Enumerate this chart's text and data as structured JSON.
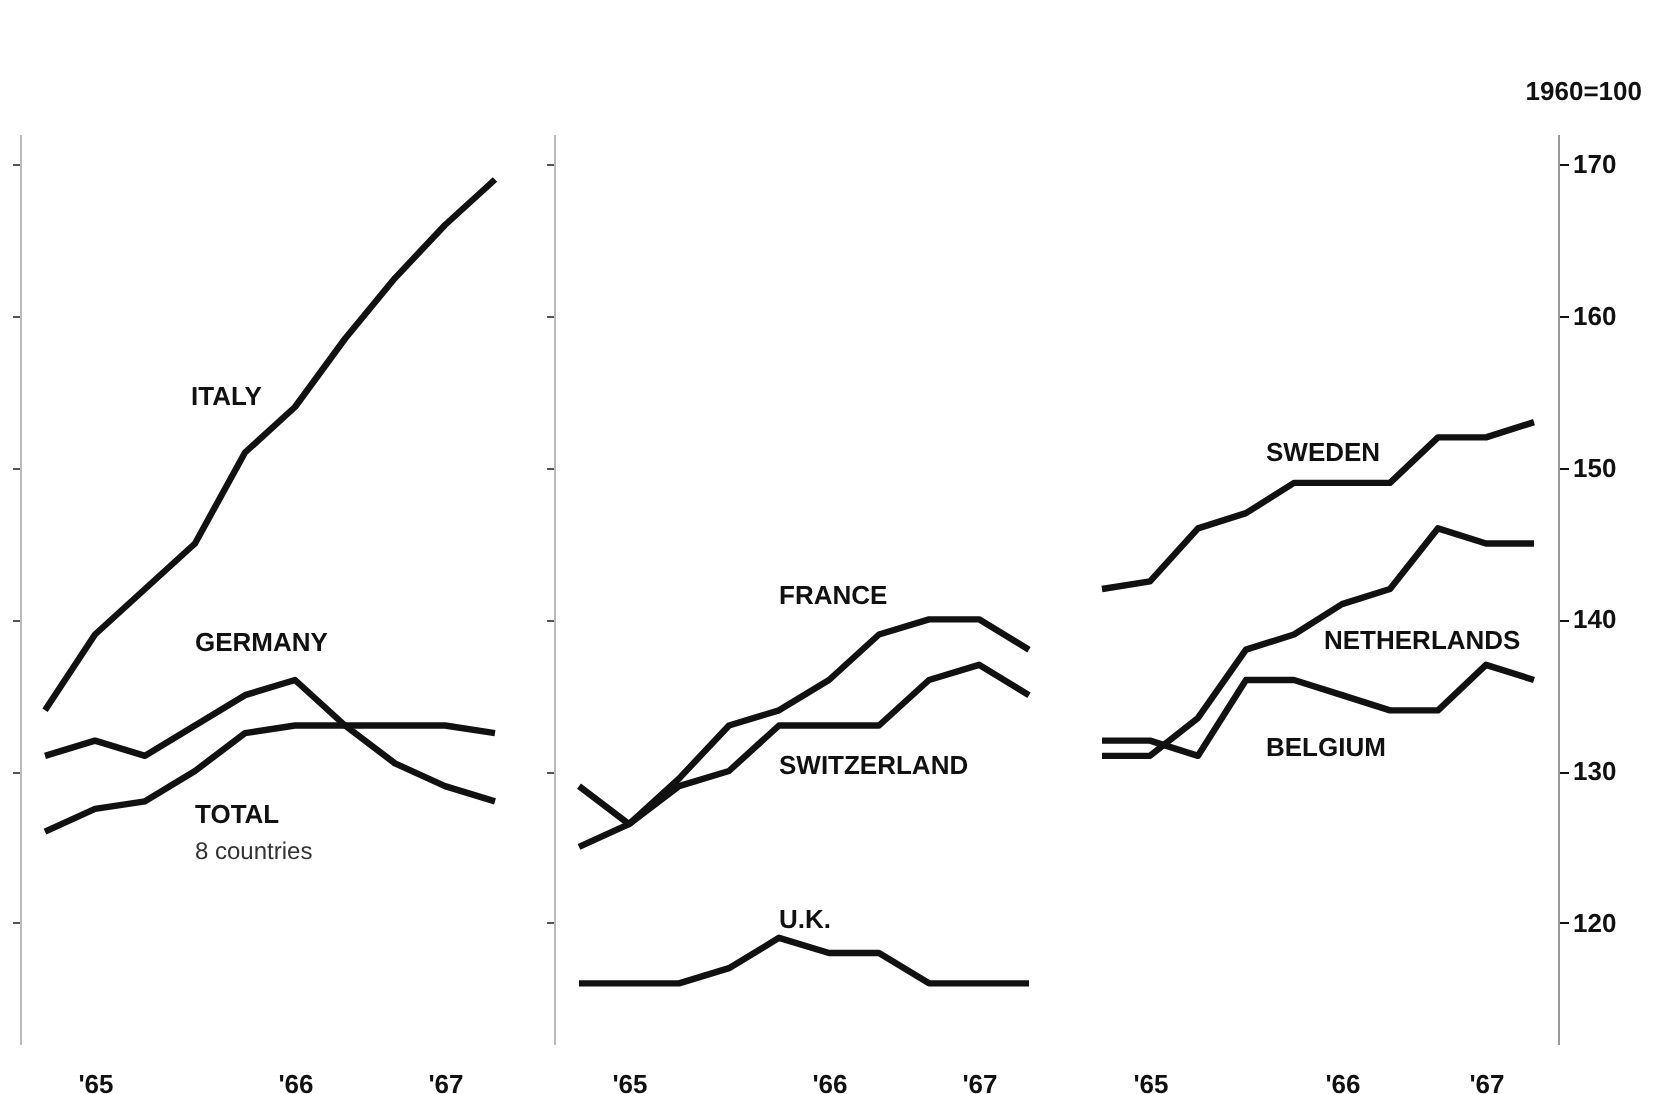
{
  "chart_data": [
    {
      "type": "line",
      "categories": [
        null,
        "'65",
        null,
        null,
        null,
        "'66",
        null,
        null,
        "'67",
        null
      ],
      "ylim": [
        112,
        172
      ],
      "yticks": [
        120,
        130,
        140,
        150,
        160,
        170
      ],
      "tick_labels": "x",
      "grid": false,
      "series": [
        {
          "name": "ITALY",
          "color": "#111111",
          "values": [
            134,
            139,
            142,
            145,
            151,
            154,
            158.5,
            162.5,
            166,
            169
          ]
        },
        {
          "name": "GERMANY",
          "color": "#111111",
          "values": [
            131,
            132,
            131,
            133,
            135,
            136,
            133,
            130.5,
            129,
            128
          ]
        },
        {
          "name": "TOTAL",
          "color": "#111111",
          "values": [
            126,
            127.5,
            128,
            130,
            132.5,
            133,
            133,
            133,
            133,
            132.5
          ]
        }
      ],
      "annotations": [
        "8 countries"
      ]
    },
    {
      "type": "line",
      "categories": [
        null,
        "'65",
        null,
        null,
        null,
        "'66",
        null,
        null,
        "'67",
        null
      ],
      "ylim": [
        112,
        172
      ],
      "yticks": [
        120,
        130,
        140,
        150,
        160,
        170
      ],
      "tick_labels": "x",
      "grid": false,
      "series": [
        {
          "name": "FRANCE",
          "color": "#111111",
          "values": [
            125,
            126.5,
            129.5,
            133,
            134,
            136,
            139,
            140,
            140,
            138
          ]
        },
        {
          "name": "SWITZERLAND",
          "color": "#111111",
          "values": [
            129,
            126.5,
            129,
            130,
            133,
            133,
            133,
            136,
            137,
            135
          ]
        },
        {
          "name": "U.K.",
          "color": "#111111",
          "values": [
            116,
            116,
            116,
            117,
            119,
            118,
            118,
            116,
            116,
            116
          ]
        }
      ]
    },
    {
      "type": "line",
      "categories": [
        null,
        "'65",
        null,
        null,
        null,
        "'66",
        null,
        null,
        "'67",
        null
      ],
      "ylim": [
        112,
        172
      ],
      "yticks": [
        120,
        130,
        140,
        150,
        160,
        170
      ],
      "ylabel": "1960=100",
      "grid": false,
      "series": [
        {
          "name": "SWEDEN",
          "color": "#111111",
          "values": [
            142,
            142.5,
            146,
            147,
            149,
            149,
            149,
            152,
            152,
            153
          ]
        },
        {
          "name": "NETHERLANDS",
          "color": "#111111",
          "values": [
            131,
            131,
            133.5,
            138,
            139,
            141,
            142,
            146,
            145,
            145
          ]
        },
        {
          "name": "BELGIUM",
          "color": "#111111",
          "values": [
            132,
            132,
            131,
            136,
            136,
            135,
            134,
            134,
            137,
            136
          ]
        }
      ]
    }
  ]
}
